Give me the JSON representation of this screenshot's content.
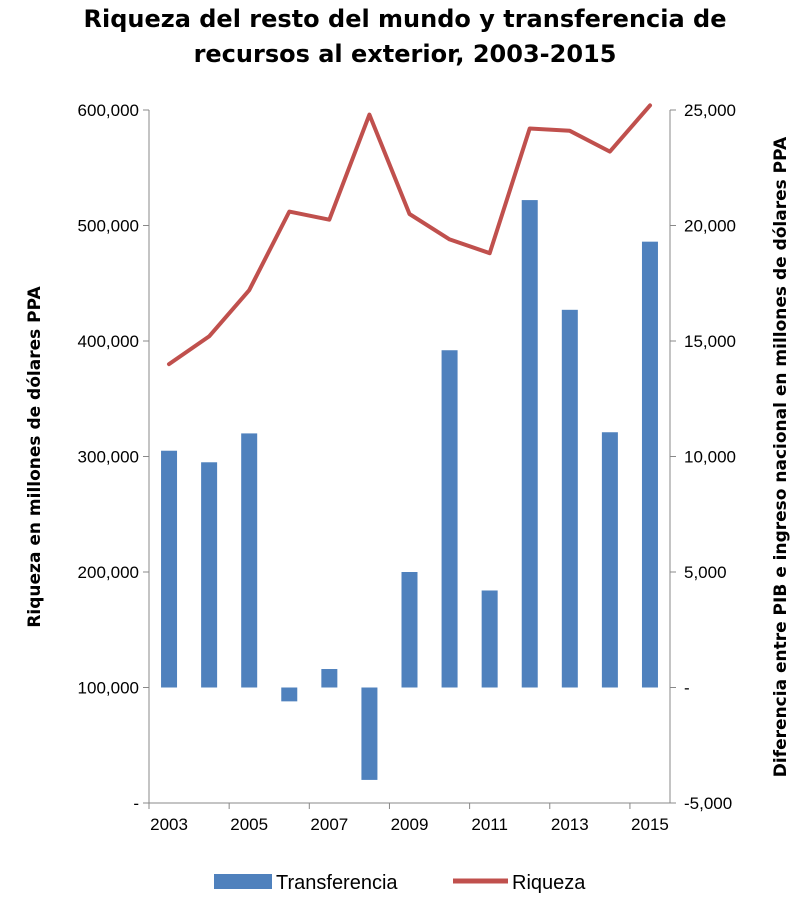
{
  "chart_data": {
    "type": "bar",
    "title_line1": "Riqueza del resto del mundo y transferencia de",
    "title_line2": "recursos al exterior, 2003-2015",
    "ylabel_left": "Riqueza en millones de dólares PPA",
    "ylabel_right": "Diferencia entre PIB e ingreso nacional en millones de dólares PPA",
    "categories": [
      "2003",
      "2004",
      "2005",
      "2006",
      "2007",
      "2008",
      "2009",
      "2010",
      "2011",
      "2012",
      "2013",
      "2014",
      "2015"
    ],
    "x_tick_labels": [
      "2003",
      "2005",
      "2007",
      "2009",
      "2011",
      "2013",
      "2015"
    ],
    "series": [
      {
        "name": "Transferencia",
        "type": "bar",
        "axis": "right",
        "color": "#4F81BD",
        "values": [
          10250,
          9750,
          11000,
          -600,
          800,
          -4000,
          5000,
          14600,
          4200,
          21100,
          16350,
          11050,
          19300
        ]
      },
      {
        "name": "Riqueza",
        "type": "line",
        "axis": "left",
        "color": "#C0504D",
        "values": [
          380000,
          404000,
          444000,
          512000,
          505000,
          596000,
          510000,
          488000,
          476000,
          584000,
          582000,
          564000,
          604000
        ]
      }
    ],
    "y_left": {
      "min": 0,
      "max": 600000,
      "ticks": [
        "-",
        "100,000",
        "200,000",
        "300,000",
        "400,000",
        "500,000",
        "600,000"
      ]
    },
    "y_right": {
      "min": -5000,
      "max": 25000,
      "ticks": [
        "-5,000",
        "-",
        "5,000",
        "10,000",
        "15,000",
        "20,000",
        "25,000"
      ]
    },
    "grid": false,
    "legend_position": "bottom"
  }
}
